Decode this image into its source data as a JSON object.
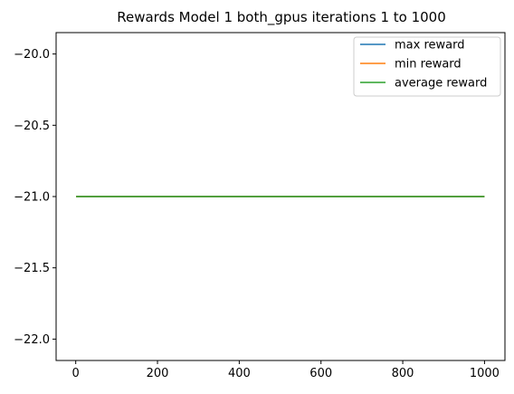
{
  "chart_data": {
    "type": "line",
    "title": "Rewards Model 1 both_gpus iterations 1 to 1000",
    "xlabel": "",
    "ylabel": "",
    "x_range": [
      1,
      1000
    ],
    "xlim": [
      -48,
      1050
    ],
    "ylim": [
      -22.15,
      -19.85
    ],
    "x_ticks": [
      0,
      200,
      400,
      600,
      800,
      1000
    ],
    "y_ticks": [
      -20.0,
      -20.5,
      -21.0,
      -21.5,
      -22.0
    ],
    "y_tick_labels": [
      "−20.0",
      "−20.5",
      "−21.0",
      "−21.5",
      "−22.0"
    ],
    "grid": false,
    "legend_position": "top-right",
    "series": [
      {
        "name": "max reward",
        "color": "#1f77b4",
        "x": [
          1,
          1000
        ],
        "values": [
          -21.0,
          -21.0
        ]
      },
      {
        "name": "min reward",
        "color": "#ff7f0e",
        "x": [
          1,
          1000
        ],
        "values": [
          -21.0,
          -21.0
        ]
      },
      {
        "name": "average reward",
        "color": "#2ca02c",
        "x": [
          1,
          1000
        ],
        "values": [
          -21.0,
          -21.0
        ]
      }
    ]
  }
}
